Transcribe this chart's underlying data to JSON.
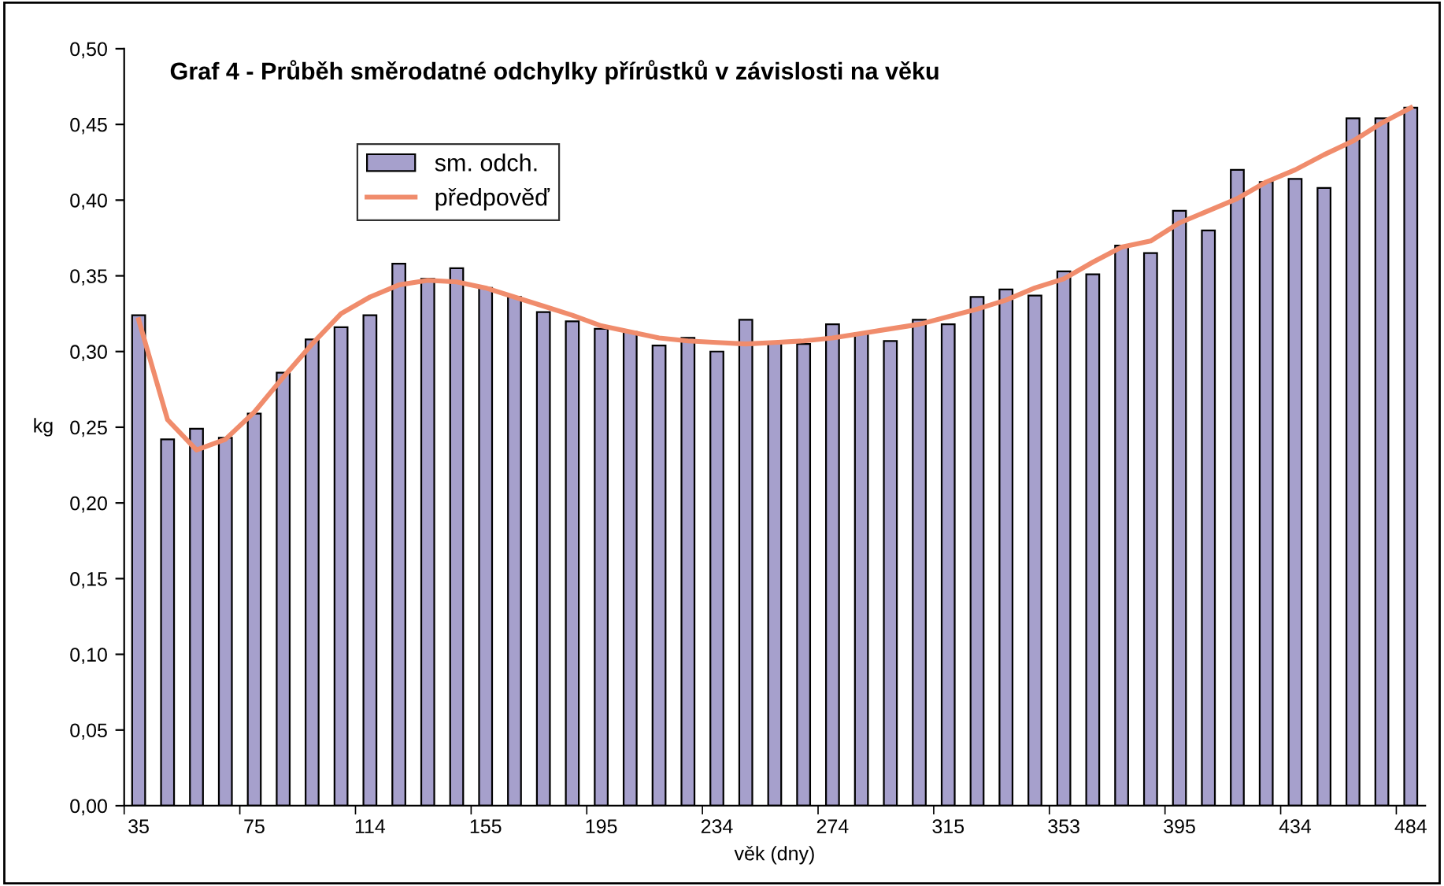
{
  "chart_data": {
    "type": "bar",
    "title": "Graf 4 - Průběh směrodatné odchylky přírůstků v závislosti na věku",
    "xlabel": "věk (dny)",
    "ylabel": "kg",
    "categories": [
      "35",
      null,
      null,
      null,
      "75",
      null,
      null,
      null,
      "114",
      null,
      null,
      null,
      "155",
      null,
      null,
      null,
      "195",
      null,
      null,
      null,
      "234",
      null,
      null,
      null,
      "274",
      null,
      null,
      null,
      "315",
      null,
      null,
      null,
      "353",
      null,
      null,
      null,
      "395",
      null,
      null,
      null,
      "434",
      null,
      null,
      null,
      "484"
    ],
    "series": [
      {
        "name": "sm. odch.",
        "color": "#a6a0cc",
        "values": [
          0.324,
          0.242,
          0.249,
          0.243,
          0.259,
          0.286,
          0.308,
          0.316,
          0.324,
          0.358,
          0.348,
          0.355,
          0.342,
          0.336,
          0.326,
          0.32,
          0.315,
          0.313,
          0.304,
          0.309,
          0.3,
          0.321,
          0.306,
          0.305,
          0.318,
          0.312,
          0.307,
          0.321,
          0.318,
          0.336,
          0.341,
          0.337,
          0.353,
          0.351,
          0.37,
          0.365,
          0.393,
          0.38,
          0.42,
          0.412,
          0.414,
          0.408,
          0.454,
          0.454,
          0.461
        ]
      },
      {
        "name": "předpověď",
        "type": "line",
        "color": "#f08c6c",
        "values": [
          0.321,
          0.255,
          0.235,
          0.242,
          0.26,
          0.283,
          0.305,
          0.325,
          0.336,
          0.344,
          0.347,
          0.346,
          0.342,
          0.336,
          0.33,
          0.324,
          0.317,
          0.313,
          0.309,
          0.307,
          0.306,
          0.305,
          0.306,
          0.307,
          0.309,
          0.312,
          0.315,
          0.318,
          0.323,
          0.328,
          0.334,
          0.342,
          0.348,
          0.359,
          0.369,
          0.373,
          0.385,
          0.393,
          0.401,
          0.412,
          0.42,
          0.43,
          0.439,
          0.451,
          0.461
        ]
      }
    ],
    "ylim": [
      0,
      0.5
    ],
    "yticks": [
      {
        "value": 0,
        "label": "0,00"
      },
      {
        "value": 0.05,
        "label": "0,05"
      },
      {
        "value": 0.1,
        "label": "0,10"
      },
      {
        "value": 0.15,
        "label": "0,15"
      },
      {
        "value": 0.2,
        "label": "0,20"
      },
      {
        "value": 0.25,
        "label": "0,25"
      },
      {
        "value": 0.3,
        "label": "0,30"
      },
      {
        "value": 0.35,
        "label": "0,35"
      },
      {
        "value": 0.4,
        "label": "0,40"
      },
      {
        "value": 0.45,
        "label": "0,45"
      },
      {
        "value": 0.5,
        "label": "0,50"
      }
    ],
    "grid": false,
    "legend": "top left",
    "marker": "none",
    "line_style": "solid"
  }
}
